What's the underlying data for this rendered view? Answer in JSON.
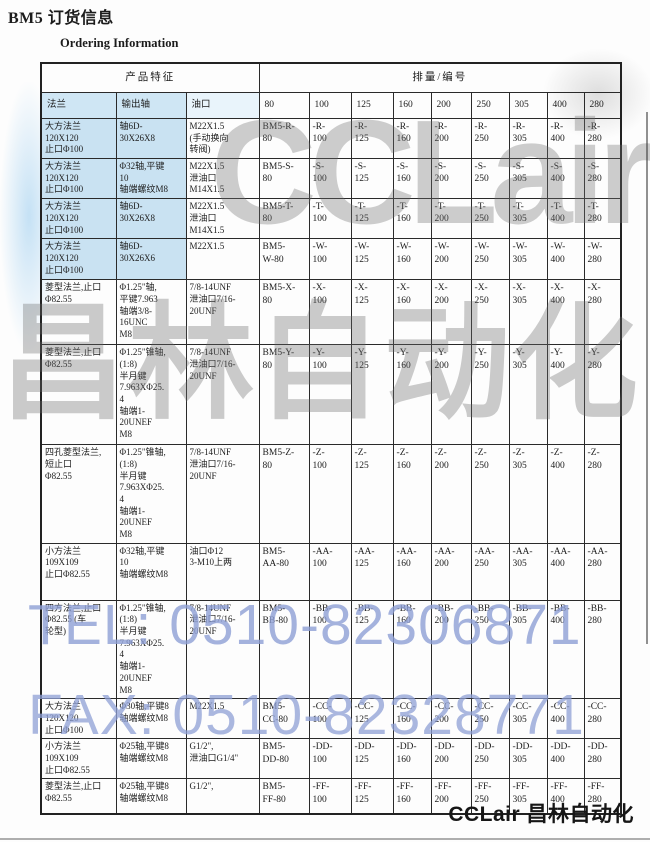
{
  "page": {
    "title": "BM5 订货信息",
    "subtitle": "Ordering Information",
    "footer_brand": "CCLair 昌林自动化"
  },
  "colors": {
    "highlight_blue": "#c9e2f2",
    "watermark_blue": "#8fa0d6",
    "watermark_gray": "#6f6f6f"
  },
  "watermarks": {
    "logo_text": "CCLair",
    "logo_text_cn": "昌林自动化",
    "tel": "TEL: 0510-82306871",
    "fax": "FAX: 0510-82328771"
  },
  "table": {
    "header_group": {
      "features": "产品特征",
      "displacement": "排量/编号"
    },
    "columns": [
      "法兰",
      "输出轴",
      "油口",
      "80",
      "100",
      "125",
      "160",
      "200",
      "250",
      "305",
      "400",
      "280"
    ],
    "rows": [
      {
        "highlight": true,
        "flange": "大方法兰\n120X120\n止口Φ100",
        "shaft": "轴6D-\n30X26X8",
        "port": "M22X1.5\n(手动换向\n转阀)",
        "codes": [
          "BM5-R-\n80",
          "-R-\n100",
          "-R-\n125",
          "-R-\n160",
          "-R-\n200",
          "-R-\n250",
          "-R-\n305",
          "-R-\n400",
          "-R-\n280"
        ]
      },
      {
        "highlight": true,
        "flange": "大方法兰\n120X120\n止口Φ100",
        "shaft": "Φ32轴,平键\n10\n轴端螺纹M8",
        "port": "M22X1.5\n泄油口\nM14X1.5",
        "codes": [
          "BM5-S-\n80",
          "-S-\n100",
          "-S-\n125",
          "-S-\n160",
          "-S-\n200",
          "-S-\n250",
          "-S-\n305",
          "-S-\n400",
          "-S-\n280"
        ]
      },
      {
        "highlight": true,
        "flange": "大方法兰\n120X120\n止口Φ100",
        "shaft": "轴6D-\n30X26X8",
        "port": "M22X1.5\n泄油口\nM14X1.5",
        "codes": [
          "BM5-T-\n80",
          "-T-\n100",
          "-T-\n125",
          "-T-\n160",
          "-T-\n200",
          "-T-\n250",
          "-T-\n305",
          "-T-\n400",
          "-T-\n280"
        ]
      },
      {
        "highlight": true,
        "flange": "大方法兰\n120X120\n止口Φ100",
        "shaft": "轴6D-\n30X26X6",
        "port": "M22X1.5",
        "codes": [
          "BM5-\nW-80",
          "-W-\n100",
          "-W-\n125",
          "-W-\n160",
          "-W-\n200",
          "-W-\n250",
          "-W-\n305",
          "-W-\n400",
          "-W-\n280"
        ]
      },
      {
        "highlight": false,
        "flange": "菱型法兰,止口\nΦ82.55",
        "shaft": "Φ1.25\"轴,\n平键7.963\n轴端3/8-\n16UNC\nM8",
        "port": "7/8-14UNF\n泄油口7/16-\n20UNF",
        "codes": [
          "BM5-X-\n80",
          "-X-\n100",
          "-X-\n125",
          "-X-\n160",
          "-X-\n200",
          "-X-\n250",
          "-X-\n305",
          "-X-\n400",
          "-X-\n280"
        ]
      },
      {
        "highlight": false,
        "flange": "菱型法兰,止口\nΦ82.55",
        "shaft": "Φ1.25\"锥轴,\n(1:8)\n半月键\n7.963XΦ25.\n4\n轴端1-\n20UNEF\nM8",
        "port": "7/8-14UNF\n泄油口7/16-\n20UNF",
        "codes": [
          "BM5-Y-\n80",
          "-Y-\n100",
          "-Y-\n125",
          "-Y-\n160",
          "-Y-\n200",
          "-Y-\n250",
          "-Y-\n305",
          "-Y-\n400",
          "-Y-\n280"
        ]
      },
      {
        "highlight": false,
        "flange": "四孔菱型法兰,\n短止口\nΦ82.55",
        "shaft": "Φ1.25\"锥轴,\n(1:8)\n半月键\n7.963XΦ25.\n4\n轴端1-\n20UNEF\nM8",
        "port": "7/8-14UNF\n泄油口7/16-\n20UNF",
        "codes": [
          "BM5-Z-\n80",
          "-Z-\n100",
          "-Z-\n125",
          "-Z-\n160",
          "-Z-\n200",
          "-Z-\n250",
          "-Z-\n305",
          "-Z-\n400",
          "-Z-\n280"
        ]
      },
      {
        "highlight": false,
        "flange": "小方法兰\n109X109\n止口Φ82.55",
        "shaft": "Φ32轴,平键\n10\n轴端螺纹M8",
        "port": "油口Φ12\n3-M10上两",
        "codes": [
          "BM5-\nAA-80",
          "-AA-\n100",
          "-AA-\n125",
          "-AA-\n160",
          "-AA-\n200",
          "-AA-\n250",
          "-AA-\n305",
          "-AA-\n400",
          "-AA-\n280"
        ]
      },
      {
        "highlight": false,
        "flange": "四方法兰,止口\nΦ82.55 (车\n轮型)",
        "shaft": "Φ1.25\"锥轴,\n(1:8)\n半月键\n7.963XΦ25.\n4\n轴端1-\n20UNEF\nM8",
        "port": "7/8-14UNF\n泄油口7/16-\n20UNF",
        "codes": [
          "BM5-\nBB-80",
          "-BB-\n100",
          "-BB-\n125",
          "-BB-\n160",
          "-BB-\n200",
          "-BB-\n250",
          "-BB-\n305",
          "-BB-\n400",
          "-BB-\n280"
        ]
      },
      {
        "highlight": false,
        "flange": "大方法兰\n120X120\n止口Φ100",
        "shaft": "Φ30轴,平键8\n轴端螺纹M8",
        "port": "M22X1.5",
        "codes": [
          "BM5-\nCC-80",
          "-CC-\n100",
          "-CC-\n125",
          "-CC-\n160",
          "-CC-\n200",
          "-CC-\n250",
          "-CC-\n305",
          "-CC-\n400",
          "-CC-\n280"
        ]
      },
      {
        "highlight": false,
        "flange": "小方法兰\n109X109\n止口Φ82.55",
        "shaft": "Φ25轴,平键8\n轴端螺纹M8",
        "port": "G1/2\",\n泄油口G1/4\"",
        "codes": [
          "BM5-\nDD-80",
          "-DD-\n100",
          "-DD-\n125",
          "-DD-\n160",
          "-DD-\n200",
          "-DD-\n250",
          "-DD-\n305",
          "-DD-\n400",
          "-DD-\n280"
        ]
      },
      {
        "highlight": false,
        "flange": "菱型法兰,止口\nΦ82.55",
        "shaft": "Φ25轴,平键8\n轴端螺纹M8",
        "port": "G1/2\",",
        "codes": [
          "BM5-\nFF-80",
          "-FF-\n100",
          "-FF-\n125",
          "-FF-\n160",
          "-FF-\n200",
          "-FF-\n250",
          "-FF-\n305",
          "-FF-\n400",
          "-FF-\n280"
        ]
      }
    ]
  }
}
